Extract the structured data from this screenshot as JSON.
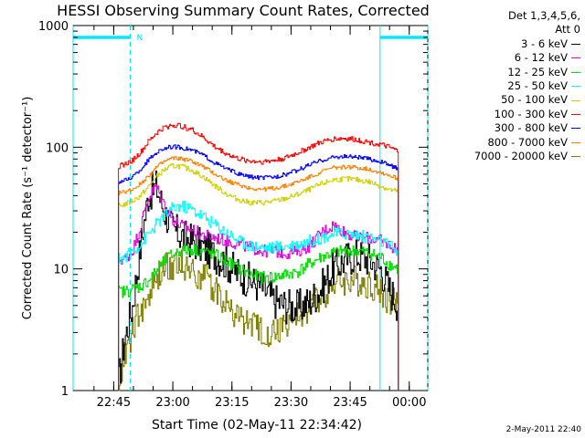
{
  "chart_data": {
    "type": "line",
    "title": "HESSI Observing Summary Count Rates, Corrected",
    "xlabel": "Start Time (02-May-11 22:34:42)",
    "ylabel": "Corrected Count Rate (s⁻¹ detector⁻¹)",
    "yscale": "log",
    "ylim": [
      1,
      1000
    ],
    "xlim_minutes_after_2234": [
      0,
      90
    ],
    "ytick_labels": [
      "1",
      "10",
      "100",
      "1000"
    ],
    "xtick_labels": [
      "22:45",
      "23:00",
      "23:15",
      "23:30",
      "23:45",
      "00:00"
    ],
    "xtick_minutes": [
      10.3,
      25.3,
      40.3,
      55.3,
      70.3,
      85.3
    ],
    "legend_header": [
      "Det 1,3,4,5,6,",
      "Att 0"
    ],
    "legend_position": "right",
    "marker_label": "N",
    "night_intervals": [
      [
        0,
        14.5
      ],
      [
        77.9,
        90
      ]
    ],
    "night_markers": [
      0,
      14.5,
      77.9,
      90
    ],
    "data_start": 11.5,
    "data_end": 82.5,
    "series": [
      {
        "name": "3 - 6 keV",
        "color": "#000000",
        "x": [
          11.5,
          13,
          15,
          17,
          19,
          21,
          23,
          25,
          27,
          30,
          33,
          36,
          39,
          42,
          45,
          48,
          51,
          54,
          57,
          60,
          63,
          66,
          69,
          72,
          75,
          78,
          80,
          82.5
        ],
        "y": [
          1.2,
          2.6,
          5,
          15,
          40,
          48,
          30,
          22,
          19,
          17,
          15,
          13,
          11,
          9,
          8,
          7,
          5.5,
          5,
          4.8,
          5.4,
          7,
          10,
          12,
          13,
          12,
          10,
          7,
          5
        ]
      },
      {
        "name": "6 - 12 keV",
        "color": "#e000e0",
        "x": [
          11.5,
          13,
          15,
          17,
          19,
          21,
          23,
          25,
          27,
          30,
          33,
          36,
          39,
          42,
          45,
          48,
          51,
          54,
          57,
          60,
          63,
          66,
          69,
          72,
          75,
          78,
          80,
          82.5
        ],
        "y": [
          12,
          12,
          14,
          22,
          38,
          48,
          34,
          26,
          23,
          21,
          19,
          18,
          17,
          16,
          15,
          14,
          14,
          13.5,
          14,
          15.5,
          20,
          23,
          20,
          18,
          18,
          17,
          16,
          14
        ]
      },
      {
        "name": "12 - 25 keV",
        "color": "#00dd00",
        "x": [
          11.5,
          13,
          15,
          17,
          19,
          21,
          23,
          25,
          27,
          30,
          33,
          36,
          39,
          42,
          45,
          48,
          51,
          54,
          57,
          60,
          63,
          66,
          69,
          72,
          75,
          78,
          80,
          82.5
        ],
        "y": [
          6.5,
          6.5,
          6.8,
          7.2,
          8,
          9.5,
          11.5,
          13,
          14,
          14.5,
          14,
          13,
          11.5,
          10,
          9,
          8.5,
          8.5,
          9,
          9.5,
          11,
          12.5,
          13.5,
          14,
          14,
          13.5,
          12.5,
          11,
          10
        ]
      },
      {
        "name": "25 - 50 keV",
        "color": "#00ffff",
        "x": [
          11.5,
          13,
          15,
          17,
          19,
          21,
          23,
          25,
          27,
          30,
          33,
          36,
          39,
          42,
          45,
          48,
          51,
          54,
          57,
          60,
          63,
          66,
          69,
          72,
          75,
          78,
          80,
          82.5
        ],
        "y": [
          12,
          12.5,
          14,
          16,
          19,
          23,
          27,
          31,
          33,
          31,
          27,
          23,
          20,
          17,
          15.5,
          15,
          15,
          15.5,
          16,
          17,
          18,
          19.5,
          19.5,
          19,
          18,
          17,
          15.5,
          14
        ]
      },
      {
        "name": "50 - 100 keV",
        "color": "#d0d000",
        "x": [
          11.5,
          13,
          15,
          17,
          19,
          21,
          23,
          25,
          27,
          30,
          33,
          36,
          39,
          42,
          45,
          48,
          51,
          54,
          57,
          60,
          63,
          66,
          69,
          72,
          75,
          78,
          80,
          82.5
        ],
        "y": [
          33,
          34,
          36,
          40,
          47,
          57,
          65,
          70,
          70,
          65,
          57,
          48,
          41,
          37,
          35,
          35,
          36,
          38,
          41,
          45,
          50,
          54,
          55,
          54,
          52,
          48,
          45,
          43
        ]
      },
      {
        "name": "100 - 300 keV",
        "color": "#ff0000",
        "x": [
          11.5,
          13,
          15,
          17,
          19,
          21,
          23,
          25,
          27,
          30,
          33,
          36,
          39,
          42,
          45,
          48,
          51,
          54,
          57,
          60,
          63,
          66,
          69,
          72,
          75,
          78,
          80,
          82.5
        ],
        "y": [
          70,
          72,
          78,
          90,
          110,
          130,
          145,
          152,
          150,
          140,
          120,
          100,
          88,
          80,
          77,
          76,
          78,
          82,
          90,
          100,
          110,
          117,
          118,
          115,
          110,
          105,
          100,
          92
        ]
      },
      {
        "name": "300 - 800 keV",
        "color": "#0000ff",
        "x": [
          11.5,
          13,
          15,
          17,
          19,
          21,
          23,
          25,
          27,
          30,
          33,
          36,
          39,
          42,
          45,
          48,
          51,
          54,
          57,
          60,
          63,
          66,
          69,
          72,
          75,
          78,
          80,
          82.5
        ],
        "y": [
          52,
          53,
          57,
          65,
          78,
          90,
          98,
          101,
          100,
          95,
          86,
          74,
          66,
          60,
          57,
          56,
          57,
          60,
          65,
          72,
          78,
          83,
          84,
          83,
          80,
          76,
          72,
          66
        ]
      },
      {
        "name": "800 - 7000 keV",
        "color": "#ff8000",
        "x": [
          11.5,
          13,
          15,
          17,
          19,
          21,
          23,
          25,
          27,
          30,
          33,
          36,
          39,
          42,
          45,
          48,
          51,
          54,
          57,
          60,
          63,
          66,
          69,
          72,
          75,
          78,
          80,
          82.5
        ],
        "y": [
          42,
          43,
          45,
          50,
          58,
          68,
          76,
          81,
          81,
          77,
          69,
          60,
          53,
          49,
          46,
          45,
          46,
          48,
          52,
          57,
          63,
          68,
          69,
          68,
          66,
          62,
          59,
          55
        ]
      },
      {
        "name": "7000 - 20000 keV",
        "color": "#808000",
        "x": [
          11.5,
          13,
          15,
          17,
          19,
          21,
          23,
          25,
          27,
          30,
          33,
          36,
          39,
          42,
          45,
          48,
          51,
          54,
          57,
          60,
          63,
          66,
          69,
          72,
          75,
          78,
          80,
          82.5
        ],
        "y": [
          1.1,
          2,
          3,
          4.5,
          6,
          8,
          10,
          11,
          11,
          10,
          8.5,
          7,
          5,
          4,
          3.5,
          3,
          3,
          3.5,
          4,
          5,
          6,
          7.5,
          8,
          8,
          7.5,
          6.5,
          5.5,
          5
        ]
      }
    ],
    "stamp": "2-May-2011 22:40"
  }
}
